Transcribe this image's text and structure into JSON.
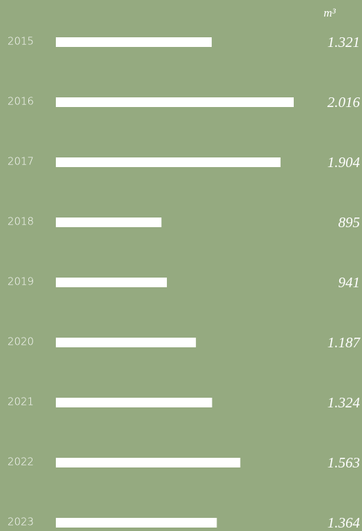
{
  "chart_data": {
    "type": "bar",
    "orientation": "horizontal",
    "unit": "m³",
    "categories": [
      "2015",
      "2016",
      "2017",
      "2018",
      "2019",
      "2020",
      "2021",
      "2022",
      "2023"
    ],
    "values": [
      1321,
      2016,
      1904,
      895,
      941,
      1187,
      1324,
      1563,
      1364
    ],
    "value_labels": [
      "1.321",
      "2.016",
      "1.904",
      "895",
      "941",
      "1.187",
      "1.324",
      "1.563",
      "1.364"
    ],
    "color": "#ffffff"
  }
}
